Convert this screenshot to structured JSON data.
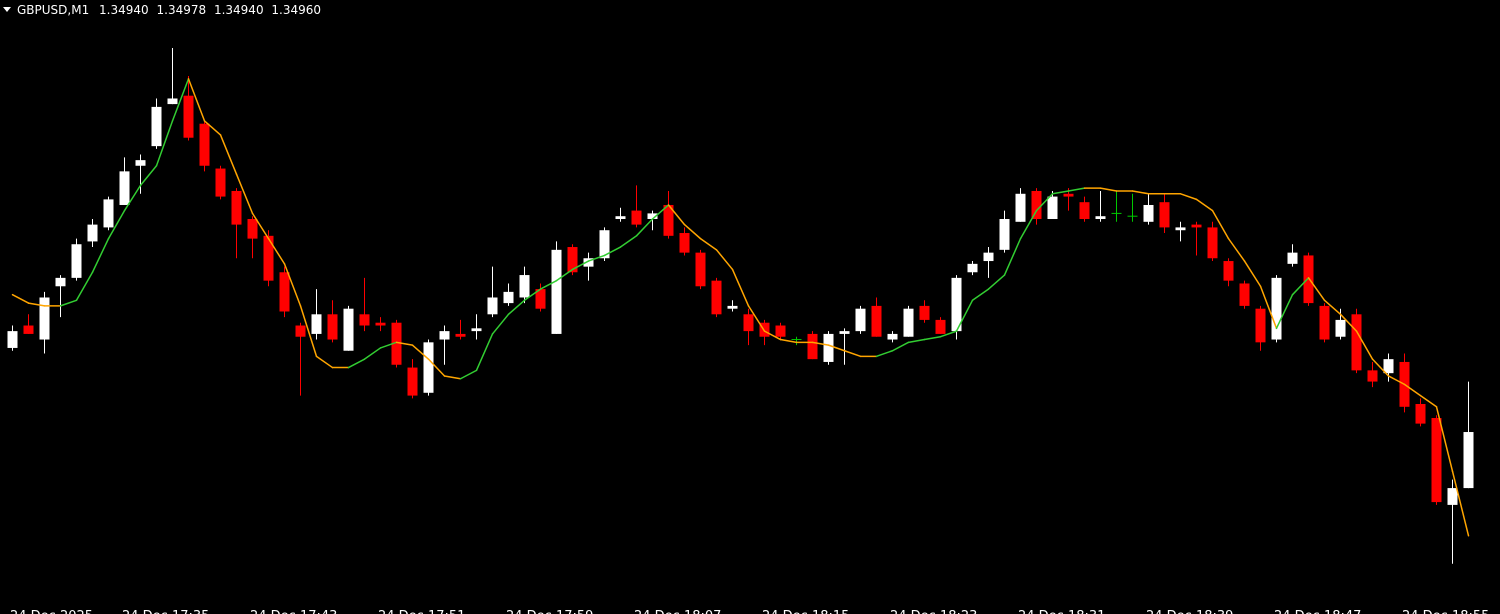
{
  "info": {
    "symbol": "GBPUSD,M1",
    "values": [
      "1.34940",
      "1.34978",
      "1.34940",
      "1.34960"
    ]
  },
  "chart_data": {
    "type": "candlestick",
    "background": "#000000",
    "bull_color": "#ffffff",
    "bear_color": "#ff0000",
    "doji_color": "#00c800",
    "ylim": [
      1.34899,
      1.35107
    ],
    "categories": [
      "24 Dec 2025",
      null,
      null,
      null,
      null,
      null,
      null,
      "24 Dec 17:35",
      null,
      null,
      null,
      null,
      null,
      null,
      null,
      "24 Dec 17:43",
      null,
      null,
      null,
      null,
      null,
      null,
      null,
      "24 Dec 17:51",
      null,
      null,
      null,
      null,
      null,
      null,
      null,
      "24 Dec 17:59",
      null,
      null,
      null,
      null,
      null,
      null,
      null,
      "24 Dec 18:07",
      null,
      null,
      null,
      null,
      null,
      null,
      null,
      "24 Dec 18:15",
      null,
      null,
      null,
      null,
      null,
      null,
      null,
      "24 Dec 18:23",
      null,
      null,
      null,
      null,
      null,
      null,
      null,
      "24 Dec 18:31",
      null,
      null,
      null,
      null,
      null,
      null,
      null,
      "24 Dec 18:39",
      null,
      null,
      null,
      null,
      null,
      null,
      null,
      "24 Dec 18:47",
      null,
      null,
      null,
      null,
      null,
      null,
      null,
      "24 Dec 18:55",
      null,
      null,
      null,
      null
    ],
    "open": [
      1.3499,
      1.34998,
      1.34993,
      1.35012,
      1.35015,
      1.35028,
      1.35033,
      1.35041,
      1.35055,
      1.35062,
      1.35077,
      1.3508,
      1.3507,
      1.35054,
      1.35046,
      1.35036,
      1.3503,
      1.35017,
      1.34998,
      1.34995,
      1.35002,
      1.34989,
      1.35002,
      1.34999,
      1.34999,
      1.34983,
      1.34974,
      1.34993,
      1.34995,
      1.34996,
      1.35002,
      1.35006,
      1.35008,
      1.35011,
      1.34995,
      1.35026,
      1.35019,
      1.35022,
      1.35036,
      1.35039,
      1.35036,
      1.35041,
      1.35031,
      1.35024,
      1.35014,
      1.35004,
      1.35002,
      1.34999,
      1.34998,
      1.34993,
      1.34995,
      1.34985,
      1.34995,
      1.34996,
      1.35005,
      1.34993,
      1.34994,
      1.35005,
      1.35,
      1.34996,
      1.35017,
      1.35021,
      1.35025,
      1.35035,
      1.35046,
      1.35036,
      1.35045,
      1.35042,
      1.35036,
      1.35038,
      1.35037,
      1.35035,
      1.35042,
      1.35032,
      1.35034,
      1.35033,
      1.35021,
      1.35013,
      1.35004,
      1.34993,
      1.3502,
      1.35023,
      1.35005,
      1.34994,
      1.35002,
      1.34982,
      1.34981,
      1.34985,
      1.3497,
      1.34965,
      1.34934,
      1.3494
    ],
    "high": [
      1.34998,
      1.35002,
      1.3501,
      1.35016,
      1.35029,
      1.35036,
      1.35044,
      1.35058,
      1.35059,
      1.35079,
      1.35097,
      1.35087,
      1.35071,
      1.35055,
      1.35047,
      1.35037,
      1.35032,
      1.35019,
      1.34999,
      1.35011,
      1.35007,
      1.35005,
      1.35015,
      1.35001,
      1.35,
      1.34986,
      1.34993,
      1.34998,
      1.35,
      1.35002,
      1.35019,
      1.35013,
      1.35019,
      1.35013,
      1.35028,
      1.35027,
      1.35024,
      1.35033,
      1.3504,
      1.35048,
      1.35039,
      1.35046,
      1.35033,
      1.35025,
      1.35015,
      1.35007,
      1.35004,
      1.35,
      1.34999,
      1.34994,
      1.34996,
      1.34996,
      1.34997,
      1.35005,
      1.35008,
      1.34996,
      1.35005,
      1.35007,
      1.35001,
      1.35016,
      1.35021,
      1.35026,
      1.35039,
      1.35047,
      1.35047,
      1.35046,
      1.35047,
      1.35044,
      1.35046,
      1.35046,
      1.35045,
      1.35045,
      1.35045,
      1.35035,
      1.35035,
      1.35035,
      1.35022,
      1.35014,
      1.35005,
      1.35016,
      1.35027,
      1.35024,
      1.35006,
      1.35004,
      1.35004,
      1.34985,
      1.34988,
      1.34988,
      1.34972,
      1.34966,
      1.34943,
      1.34978
    ],
    "low": [
      1.34989,
      1.34995,
      1.34988,
      1.35001,
      1.35014,
      1.35026,
      1.35032,
      1.35041,
      1.35045,
      1.35061,
      1.35077,
      1.35064,
      1.35053,
      1.35043,
      1.35022,
      1.35022,
      1.35012,
      1.35001,
      1.34973,
      1.34993,
      1.34992,
      1.34989,
      1.34996,
      1.34996,
      1.34983,
      1.34972,
      1.34973,
      1.34984,
      1.34993,
      1.34993,
      1.35001,
      1.35005,
      1.35006,
      1.35003,
      1.34995,
      1.35016,
      1.35014,
      1.35021,
      1.35035,
      1.35033,
      1.35032,
      1.35029,
      1.35023,
      1.35011,
      1.35001,
      1.35003,
      1.34991,
      1.34991,
      1.34993,
      1.34991,
      1.34986,
      1.34984,
      1.34984,
      1.34995,
      1.34994,
      1.34992,
      1.34994,
      1.34999,
      1.34995,
      1.34993,
      1.35016,
      1.35015,
      1.35024,
      1.35035,
      1.35034,
      1.35036,
      1.35039,
      1.35035,
      1.35035,
      1.35035,
      1.35035,
      1.35034,
      1.35031,
      1.35028,
      1.35023,
      1.35021,
      1.35012,
      1.35004,
      1.34989,
      1.34992,
      1.35019,
      1.35005,
      1.34992,
      1.34993,
      1.34981,
      1.34976,
      1.34978,
      1.34967,
      1.34962,
      1.34934,
      1.34913,
      1.3494
    ],
    "close": [
      1.34996,
      1.34995,
      1.35008,
      1.35015,
      1.35027,
      1.35034,
      1.35043,
      1.35053,
      1.35057,
      1.35076,
      1.35079,
      1.35065,
      1.35055,
      1.35044,
      1.35034,
      1.35029,
      1.35014,
      1.35003,
      1.34994,
      1.35002,
      1.34993,
      1.35004,
      1.34998,
      1.34998,
      1.34984,
      1.34973,
      1.34992,
      1.34996,
      1.34994,
      1.34997,
      1.35008,
      1.3501,
      1.35016,
      1.35004,
      1.35025,
      1.35017,
      1.35022,
      1.35032,
      1.35037,
      1.35034,
      1.35038,
      1.3503,
      1.35024,
      1.35012,
      1.35002,
      1.35005,
      1.34996,
      1.34994,
      1.34994,
      1.34993,
      1.34986,
      1.34995,
      1.34996,
      1.35004,
      1.34994,
      1.34995,
      1.35004,
      1.35,
      1.34995,
      1.35015,
      1.3502,
      1.35024,
      1.35036,
      1.35045,
      1.35036,
      1.35044,
      1.35044,
      1.35036,
      1.35037,
      1.35038,
      1.35037,
      1.35041,
      1.35033,
      1.35033,
      1.35033,
      1.35022,
      1.35014,
      1.35005,
      1.34992,
      1.35015,
      1.35024,
      1.35006,
      1.34993,
      1.35,
      1.34982,
      1.34978,
      1.34986,
      1.34969,
      1.34963,
      1.34935,
      1.3494,
      1.3496
    ],
    "ma": {
      "up_color": "#32cd32",
      "down_color": "#ffa500",
      "values": [
        1.35009,
        1.35006,
        1.35005,
        1.35005,
        1.35007,
        1.35017,
        1.35029,
        1.35039,
        1.35048,
        1.35055,
        1.35071,
        1.35086,
        1.35071,
        1.35066,
        1.35052,
        1.35038,
        1.35029,
        1.3502,
        1.35005,
        1.34987,
        1.34983,
        1.34983,
        1.34986,
        1.3499,
        1.34992,
        1.34991,
        1.34986,
        1.3498,
        1.34979,
        1.34982,
        1.34995,
        1.35002,
        1.35007,
        1.35011,
        1.35014,
        1.35018,
        1.35021,
        1.35023,
        1.35026,
        1.3503,
        1.35036,
        1.35041,
        1.35034,
        1.35029,
        1.35025,
        1.35018,
        1.35005,
        1.34996,
        1.34993,
        1.34992,
        1.34992,
        1.34991,
        1.34989,
        1.34987,
        1.34987,
        1.34989,
        1.34992,
        1.34993,
        1.34994,
        1.34996,
        1.35007,
        1.35011,
        1.35016,
        1.35029,
        1.35039,
        1.35045,
        1.35046,
        1.35047,
        1.35047,
        1.35046,
        1.35046,
        1.35045,
        1.35045,
        1.35045,
        1.35043,
        1.35039,
        1.35029,
        1.35021,
        1.35012,
        1.34997,
        1.35009,
        1.35015,
        1.35007,
        1.35002,
        1.34996,
        1.34986,
        1.3498,
        1.34977,
        1.34973,
        1.34969,
        1.34946,
        1.34923
      ]
    }
  }
}
